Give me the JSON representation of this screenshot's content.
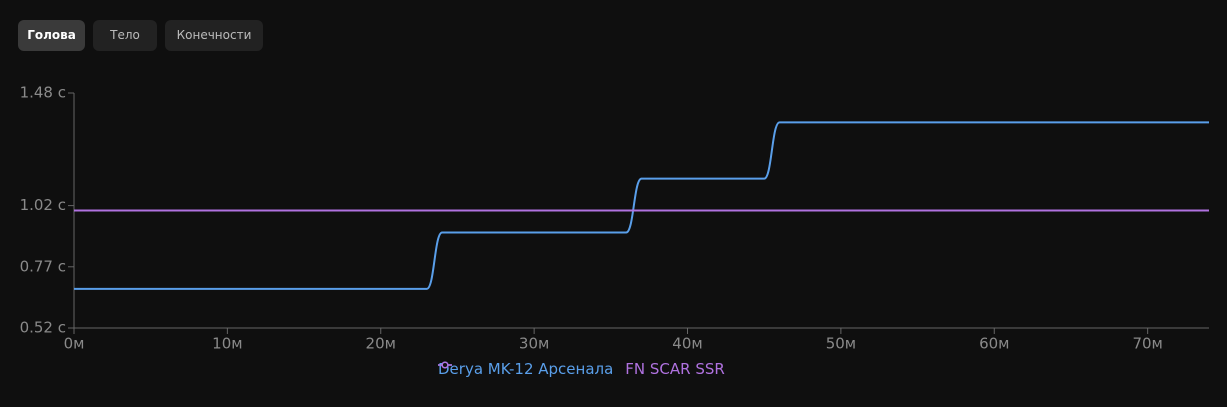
{
  "tabs": [
    {
      "label": "Голова",
      "active": true
    },
    {
      "label": "Тело",
      "active": false
    },
    {
      "label": "Конечности",
      "active": false
    }
  ],
  "chart_data": {
    "type": "line",
    "xlim": [
      0,
      74
    ],
    "ylim": [
      0.52,
      1.48
    ],
    "xticks": [
      {
        "value": 0,
        "label": "0м"
      },
      {
        "value": 10,
        "label": "10м"
      },
      {
        "value": 20,
        "label": "20м"
      },
      {
        "value": 30,
        "label": "30м"
      },
      {
        "value": 40,
        "label": "40м"
      },
      {
        "value": 50,
        "label": "50м"
      },
      {
        "value": 60,
        "label": "60м"
      },
      {
        "value": 70,
        "label": "70м"
      }
    ],
    "yticks": [
      {
        "value": 0.52,
        "label": "0.52 с"
      },
      {
        "value": 0.77,
        "label": "0.77 с"
      },
      {
        "value": 1.02,
        "label": "1.02 с"
      },
      {
        "value": 1.48,
        "label": "1.48 с"
      }
    ],
    "series": [
      {
        "name": "Derya MK-12 Арсенала",
        "color": "#5a9fea",
        "x": [
          0,
          23,
          24,
          36,
          37,
          45,
          46,
          74
        ],
        "values": [
          0.68,
          0.68,
          0.91,
          0.91,
          1.13,
          1.13,
          1.36,
          1.36
        ]
      },
      {
        "name": "FN SCAR SSR",
        "color": "#b072e0",
        "x": [
          0,
          74
        ],
        "values": [
          1.0,
          1.0
        ]
      }
    ]
  }
}
